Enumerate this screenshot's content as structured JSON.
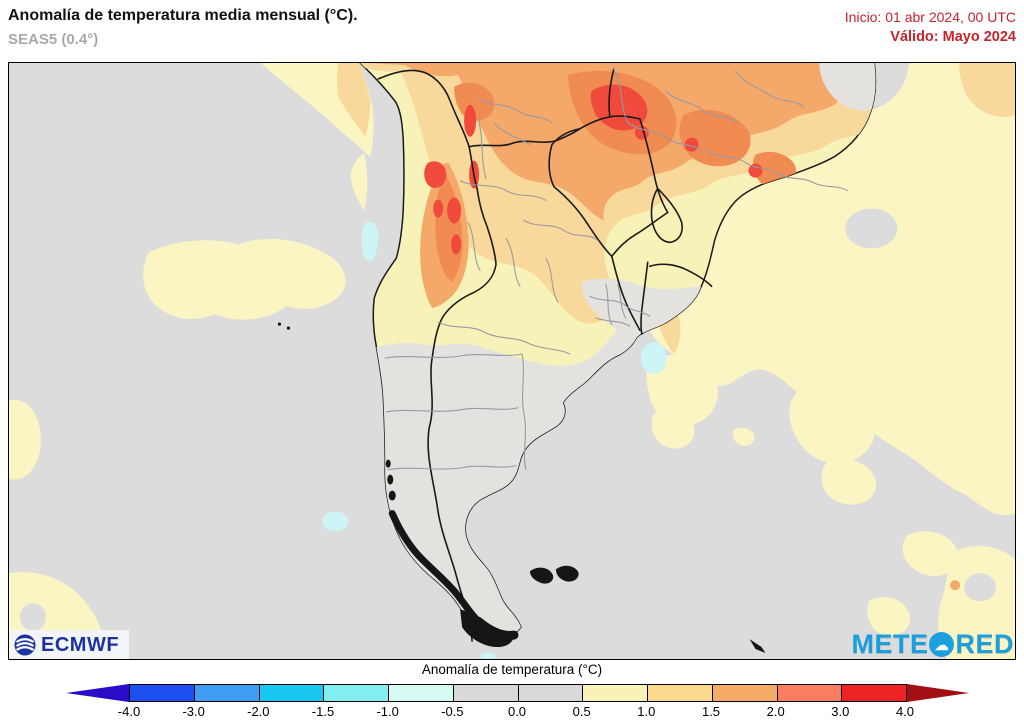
{
  "header": {
    "title": "Anomalía de temperatura media mensual (°C).",
    "subtitle": "SEAS5 (0.4°)",
    "init_label": "Inicio: 01 abr 2024, 00 UTC",
    "valid_label": "Válido: Mayo 2024"
  },
  "branding": {
    "ecmwf": "ECMWF",
    "meteored_prefix": "METE",
    "meteored_suffix": "RED",
    "cloud_glyph": "☁"
  },
  "colorbar": {
    "title": "Anomalía de temperatura (°C)",
    "ticks": [
      "-4.0",
      "-3.0",
      "-2.0",
      "-1.5",
      "-1.0",
      "-0.5",
      "0.0",
      "0.5",
      "1.0",
      "1.5",
      "2.0",
      "3.0",
      "4.0"
    ],
    "segment_colors": [
      "#1e4ff0",
      "#3f9ef4",
      "#19c7f0",
      "#83eef2",
      "#d3faf3",
      "#d9d9d9",
      "#d9d9d9",
      "#f8f2b6",
      "#fbd98e",
      "#f5ad66",
      "#f97d5e",
      "#ee2424"
    ],
    "left_arrow_color": "#2b0bc9",
    "right_arrow_color": "#a31014"
  },
  "palette": {
    "ocean_gray": "#dcdcdc",
    "land_gray": "#e3e2de",
    "land_yellow": "#f7f2b8",
    "pale_yellow": "#faf5c2",
    "sandy": "#f8d99b",
    "orange": "#f4a96a",
    "deep_orange": "#f08b51",
    "red": "#ef4a3c",
    "cyan": "#cdf4f6",
    "border_black": "#1a1a1a",
    "border_gray": "#9a9aa2",
    "header_red": "#c5242e",
    "subtitle_gray": "#a9a9a9",
    "ecmwf_navy": "#1d33a0",
    "meteored_blue": "#1c9fdc"
  }
}
